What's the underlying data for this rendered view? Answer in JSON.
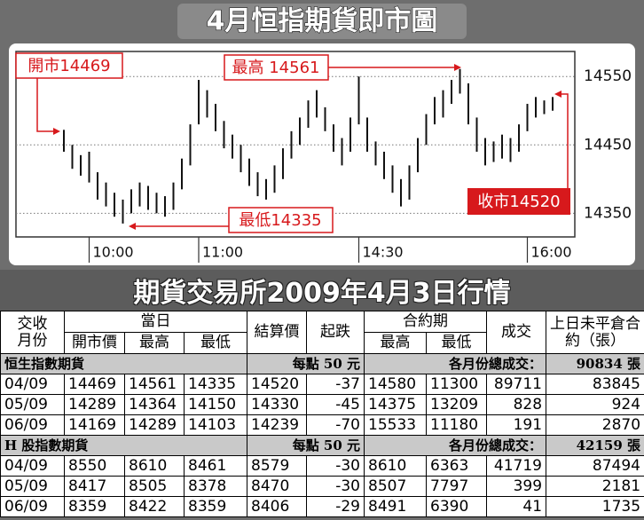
{
  "chart_data": {
    "type": "range",
    "title": "4月恒指期貨即市圖",
    "categories": [
      null,
      null,
      null,
      null,
      null,
      null,
      null,
      null,
      null,
      null,
      null,
      null,
      null,
      null,
      null,
      null,
      null,
      null,
      null,
      null,
      null,
      null,
      null,
      null,
      null,
      null,
      null,
      null,
      null,
      null,
      null,
      null,
      null,
      null,
      null,
      null,
      null,
      null,
      null,
      null,
      null,
      null,
      null,
      null,
      null,
      null,
      null,
      null,
      null,
      null,
      null,
      null,
      null,
      null,
      null,
      null,
      null,
      null,
      null
    ],
    "low": [
      14440,
      14415,
      14405,
      14395,
      14370,
      14360,
      14345,
      14335,
      14350,
      14360,
      14355,
      14350,
      14345,
      14355,
      14385,
      14420,
      14480,
      14490,
      14470,
      14445,
      14430,
      14410,
      14390,
      14375,
      14370,
      14380,
      14400,
      14430,
      14450,
      14475,
      14490,
      14470,
      14440,
      14420,
      14440,
      14480,
      14440,
      14420,
      14400,
      14380,
      14360,
      14370,
      14410,
      14450,
      14480,
      14490,
      14510,
      14525,
      14480,
      14440,
      14420,
      14425,
      14430,
      14425,
      14440,
      14470,
      14490,
      14495,
      14500
    ],
    "high": [
      14472,
      14450,
      14435,
      14440,
      14410,
      14395,
      14380,
      14370,
      14385,
      14395,
      14390,
      14380,
      14375,
      14395,
      14430,
      14480,
      14545,
      14530,
      14510,
      14485,
      14465,
      14450,
      14430,
      14410,
      14400,
      14420,
      14445,
      14470,
      14490,
      14515,
      14530,
      14505,
      14480,
      14460,
      14490,
      14550,
      14490,
      14455,
      14440,
      14420,
      14400,
      14420,
      14460,
      14495,
      14520,
      14530,
      14545,
      14561,
      14540,
      14490,
      14460,
      14455,
      14465,
      14460,
      14480,
      14510,
      14520,
      14515,
      14520
    ],
    "color": "#111111",
    "ylim": [
      14318,
      14584
    ],
    "yticks": [
      14350,
      14450,
      14550
    ],
    "grid": true,
    "xticks": [
      {
        "value": 3,
        "label": "10:00"
      },
      {
        "value": 16,
        "label": "11:00"
      },
      {
        "value": 35,
        "label": "14:30"
      },
      {
        "value": 55,
        "label": "16:00"
      }
    ],
    "annotations": {
      "open": "開市14469",
      "high": "最高 14561",
      "low": "最低14335",
      "close": "收市14520"
    }
  },
  "table": {
    "title": "期貨交易所2009年4月3日行情",
    "header": {
      "month": "交收月份",
      "today": "當日",
      "open": "開市價",
      "high": "最高",
      "low": "最低",
      "settle": "結算價",
      "change": "起跌",
      "contract": "合約期",
      "c_high": "最高",
      "c_low": "最低",
      "volume": "成交",
      "oi": "上日未平倉合約（張）"
    },
    "sections": [
      {
        "name": "恒生指數期貨",
        "note": "每點 50 元",
        "total_label": "各月份總成交：",
        "total": "90834 張",
        "rows": [
          [
            "04/09",
            "14469",
            "14561",
            "14335",
            "14520",
            "-37",
            "14580",
            "11300",
            "89711",
            "83845"
          ],
          [
            "05/09",
            "14289",
            "14364",
            "14150",
            "14330",
            "-45",
            "14375",
            "13209",
            "828",
            "924"
          ],
          [
            "06/09",
            "14169",
            "14289",
            "14103",
            "14239",
            "-70",
            "15533",
            "11180",
            "191",
            "2870"
          ]
        ]
      },
      {
        "name": "H 股指數期貨",
        "note": "每點 50 元",
        "total_label": "各月份總成交：",
        "total": "42159 張",
        "rows": [
          [
            "04/09",
            "8550",
            "8610",
            "8461",
            "8579",
            "-30",
            "8610",
            "6363",
            "41719",
            "87494"
          ],
          [
            "05/09",
            "8417",
            "8505",
            "8378",
            "8470",
            "-30",
            "8507",
            "7797",
            "399",
            "2181"
          ],
          [
            "06/09",
            "8359",
            "8422",
            "8359",
            "8406",
            "-29",
            "8491",
            "6390",
            "41",
            "1735"
          ]
        ]
      }
    ]
  }
}
